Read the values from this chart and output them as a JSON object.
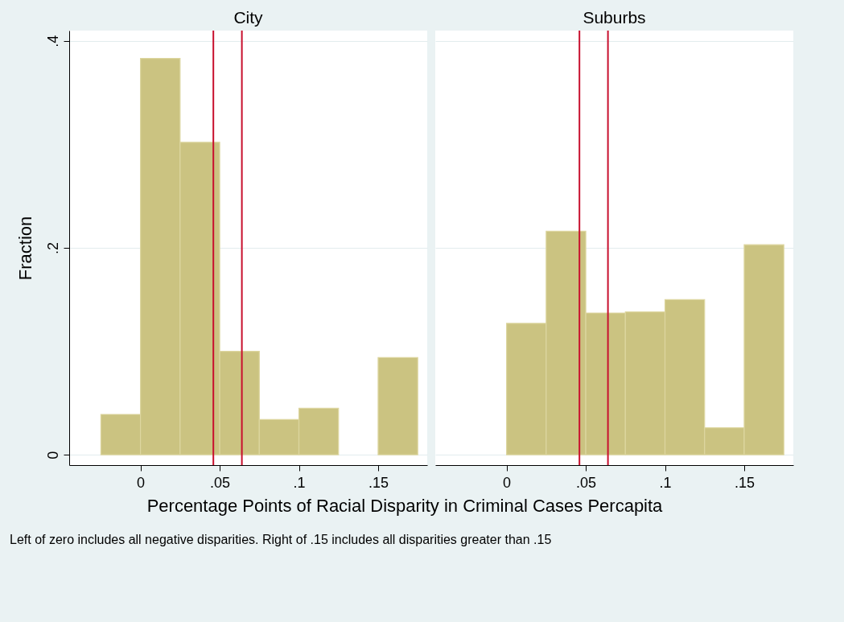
{
  "chart_data": [
    {
      "type": "histogram",
      "title": "City",
      "xlabel": "Percentage Points of Racial Disparity in Criminal Cases Percapita",
      "ylabel": "Fraction",
      "annotations": [
        "Left of zero includes all negative disparities. Right of .15 includes all disparities greater than .15"
      ],
      "bins": [
        -0.025,
        0,
        0.025,
        0.05,
        0.075,
        0.1,
        0.125,
        0.15,
        0.175
      ],
      "values": [
        0.039,
        0.383,
        0.302,
        0.1,
        0.034,
        0.045,
        0,
        0.094
      ],
      "color": "#cbc381",
      "xlim": [
        -0.045,
        0.181
      ],
      "xticks": [
        0,
        {
          "value": 0.05,
          "label": ".05"
        },
        {
          "value": 0.1,
          "label": ".1"
        },
        {
          "value": 0.15,
          "label": ".15"
        }
      ],
      "ylim": [
        -0.01,
        0.41
      ],
      "yticks": [
        0,
        {
          "value": 0.2,
          "label": ".2"
        },
        {
          "value": 0.4,
          "label": ".4"
        }
      ],
      "grid": "y",
      "ref_lines": [
        {
          "axis": "x",
          "value": 0.046,
          "color": "#c8102e"
        },
        {
          "axis": "x",
          "value": 0.064,
          "color": "#c8102e"
        }
      ]
    },
    {
      "type": "histogram",
      "title": "Suburbs",
      "bins": [
        -0.025,
        0,
        0.025,
        0.05,
        0.075,
        0.1,
        0.125,
        0.15,
        0.175
      ],
      "values": [
        0,
        0.127,
        0.216,
        0.137,
        0.138,
        0.15,
        0.026,
        0.203
      ],
      "color": "#cbc381",
      "xlim": [
        -0.045,
        0.181
      ],
      "xticks": [
        0,
        {
          "value": 0.05,
          "label": ".05"
        },
        {
          "value": 0.1,
          "label": ".1"
        },
        {
          "value": 0.15,
          "label": ".15"
        }
      ],
      "ylim": [
        -0.01,
        0.41
      ],
      "yticks": [
        0,
        0.2,
        0.4
      ],
      "grid": "y",
      "tick_labels": "x",
      "ref_lines": [
        {
          "axis": "x",
          "value": 0.046,
          "color": "#c8102e"
        },
        {
          "axis": "x",
          "value": 0.064,
          "color": "#c8102e"
        }
      ]
    }
  ]
}
